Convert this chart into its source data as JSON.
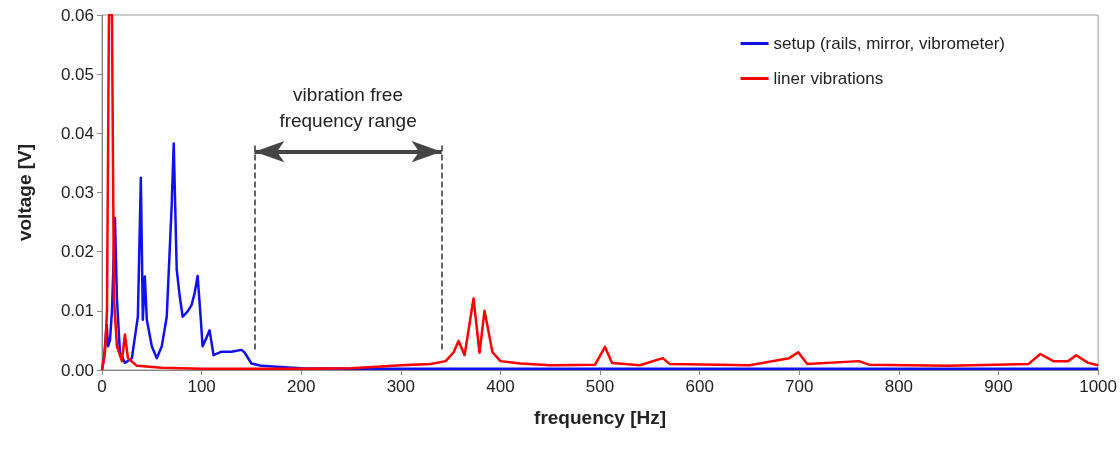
{
  "chart_data": {
    "type": "line",
    "xlabel": "frequency [Hz]",
    "ylabel": "voltage [V]",
    "annotations": [
      "vibration free\nfrequency range"
    ],
    "ref_lines": [
      {
        "axis": "x",
        "value": 153,
        "line_style": "dashed",
        "color": "#333333"
      },
      {
        "axis": "x",
        "value": 341,
        "line_style": "dashed",
        "color": "#333333"
      }
    ],
    "series": [
      {
        "name": "setup (rails, mirror, vibrometer)",
        "color": "#1010f0",
        "x": [
          0,
          2,
          4.7,
          6,
          8,
          10,
          13,
          15,
          18,
          23,
          30,
          36,
          39,
          41,
          43,
          45,
          50,
          55,
          60,
          65,
          70,
          72,
          75,
          78,
          81,
          86,
          90,
          93,
          96,
          99,
          101,
          105,
          108,
          112,
          120,
          130,
          140,
          143,
          150,
          160,
          180,
          200,
          250,
          300,
          400,
          500,
          600,
          700,
          800,
          900,
          1000
        ],
        "values": [
          0,
          0.002,
          0.0076,
          0.004,
          0.005,
          0.01,
          0.0257,
          0.012,
          0.003,
          0.0012,
          0.002,
          0.009,
          0.0325,
          0.0085,
          0.0158,
          0.0085,
          0.004,
          0.002,
          0.004,
          0.009,
          0.028,
          0.0383,
          0.017,
          0.0125,
          0.009,
          0.0099,
          0.011,
          0.013,
          0.0159,
          0.009,
          0.004,
          0.0055,
          0.0067,
          0.0025,
          0.0031,
          0.0031,
          0.0034,
          0.003,
          0.0011,
          0.0007,
          0.0005,
          0.0003,
          0.0002,
          0.0002,
          0.0002,
          0.0002,
          0.0002,
          0.0002,
          0.0002,
          0.0002,
          0.0002
        ]
      },
      {
        "name": "liner vibrations",
        "color": "#ff0000",
        "x": [
          0,
          3,
          5,
          7,
          10,
          12,
          15,
          20,
          23,
          26,
          35,
          60,
          100,
          200,
          250,
          280,
          300,
          330,
          345,
          353,
          358,
          364,
          373,
          379,
          384,
          392,
          400,
          420,
          450,
          495,
          505,
          512,
          540,
          563,
          570,
          650,
          690,
          699,
          708,
          760,
          770,
          850,
          930,
          942,
          955,
          970,
          978,
          990,
          1000
        ],
        "values": [
          0,
          0.003,
          0.01,
          0.06,
          0.06,
          0.012,
          0.004,
          0.0015,
          0.006,
          0.002,
          0.0007,
          0.0004,
          0.0002,
          0.0002,
          0.0003,
          0.0006,
          0.0008,
          0.001,
          0.0015,
          0.003,
          0.0049,
          0.0025,
          0.0121,
          0.0029,
          0.01,
          0.003,
          0.0015,
          0.0011,
          0.0008,
          0.0009,
          0.0039,
          0.0012,
          0.0008,
          0.002,
          0.001,
          0.0008,
          0.002,
          0.003,
          0.001,
          0.0015,
          0.0009,
          0.0007,
          0.001,
          0.0027,
          0.0015,
          0.0015,
          0.0025,
          0.0012,
          0.0008
        ]
      }
    ],
    "xlim": [
      0,
      1000
    ],
    "xticks": [
      0,
      100,
      200,
      300,
      400,
      500,
      600,
      700,
      800,
      900,
      1000
    ],
    "ylim": [
      0,
      0.06
    ],
    "yticks": [
      {
        "value": 0,
        "label": "0.00"
      },
      {
        "value": 0.01,
        "label": "0.01"
      },
      {
        "value": 0.02,
        "label": "0.02"
      },
      {
        "value": 0.03,
        "label": "0.03"
      },
      {
        "value": 0.04,
        "label": "0.04"
      },
      {
        "value": 0.05,
        "label": "0.05"
      },
      {
        "value": 0.06,
        "label": "0.06"
      }
    ],
    "grid": false,
    "legend": "top right",
    "marker": "none",
    "line_style": "solid"
  }
}
